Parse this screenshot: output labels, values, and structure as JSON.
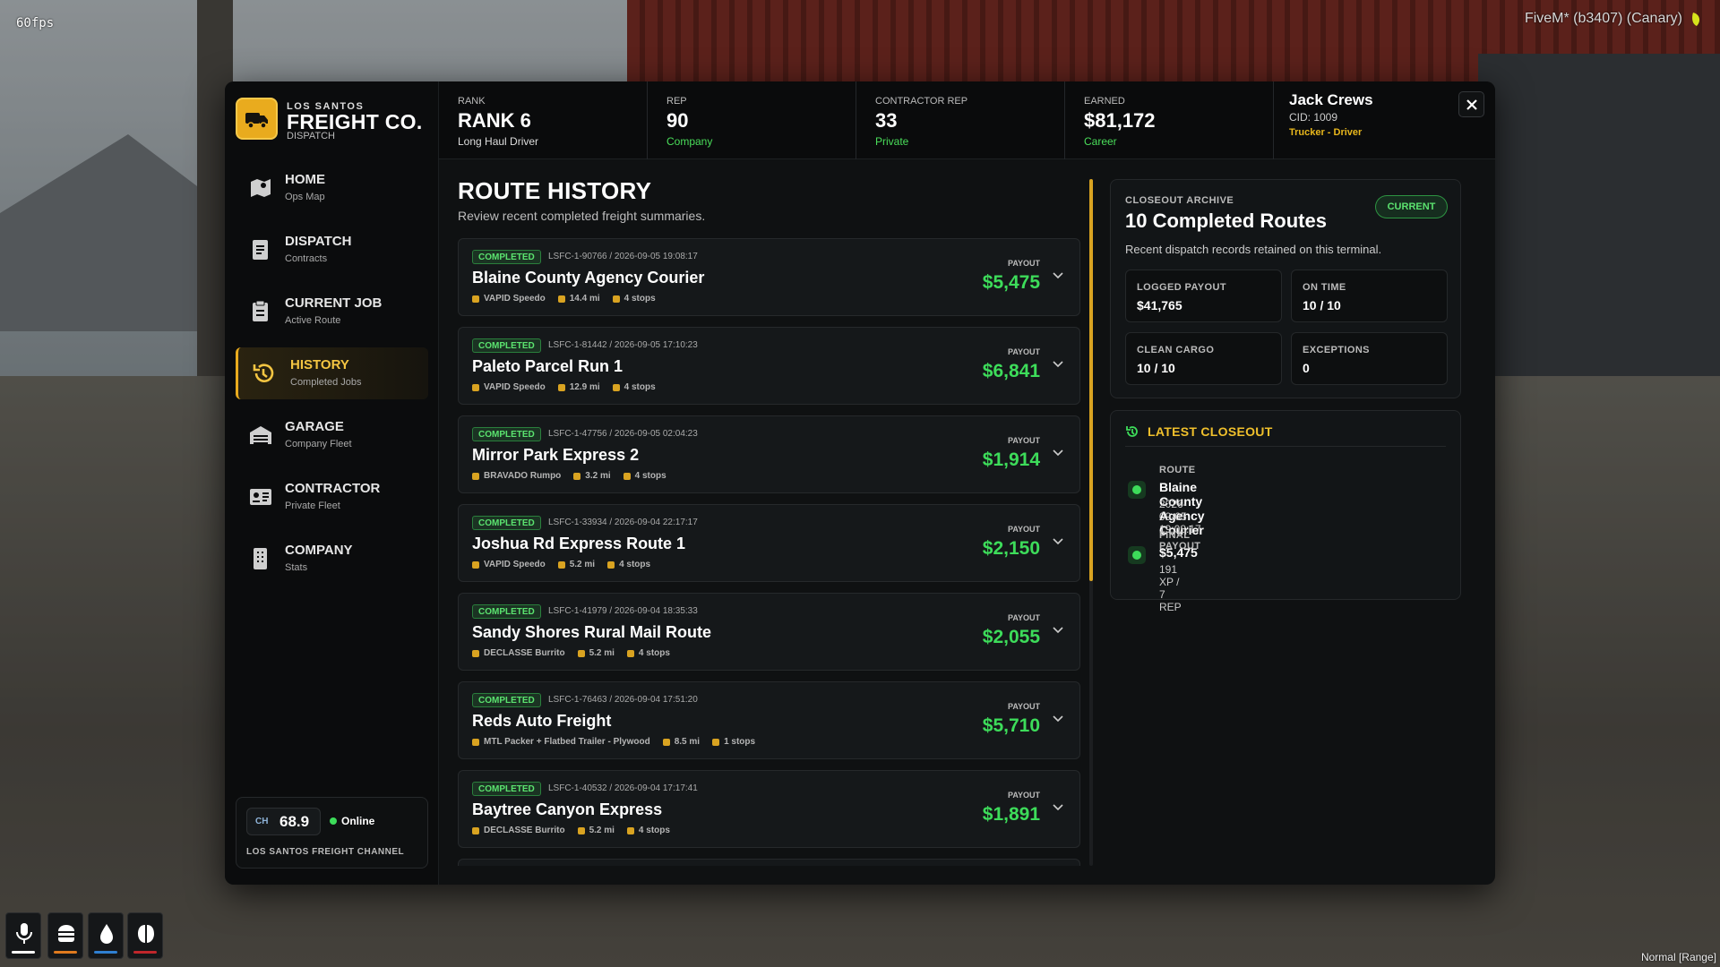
{
  "overlay": {
    "fps": "60fps",
    "client": "FiveM* (b3407) (Canary)",
    "voice_mode": "Normal [Range]"
  },
  "brand": {
    "line1": "LOS SANTOS",
    "name": "FREIGHT CO.",
    "sub": "DISPATCH"
  },
  "nav": [
    {
      "label": "HOME",
      "sub": "Ops Map"
    },
    {
      "label": "DISPATCH",
      "sub": "Contracts"
    },
    {
      "label": "CURRENT JOB",
      "sub": "Active Route"
    },
    {
      "label": "HISTORY",
      "sub": "Completed Jobs",
      "active": true
    },
    {
      "label": "GARAGE",
      "sub": "Company Fleet"
    },
    {
      "label": "CONTRACTOR",
      "sub": "Private Fleet"
    },
    {
      "label": "COMPANY",
      "sub": "Stats"
    }
  ],
  "channel": {
    "ch_label": "CH",
    "frequency": "68.9",
    "status": "Online",
    "name": "LOS SANTOS FREIGHT CHANNEL"
  },
  "stats": [
    {
      "label": "RANK",
      "value": "RANK 6",
      "sub": "Long Haul Driver"
    },
    {
      "label": "REP",
      "value": "90",
      "sub": "Company"
    },
    {
      "label": "CONTRACTOR REP",
      "value": "33",
      "sub": "Private"
    },
    {
      "label": "EARNED",
      "value": "$81,172",
      "sub": "Career"
    }
  ],
  "user": {
    "name": "Jack Crews",
    "cid": "CID: 1009",
    "role": "Trucker - Driver"
  },
  "history": {
    "title": "ROUTE HISTORY",
    "subtitle": "Review recent completed freight summaries.",
    "payout_label": "PAYOUT",
    "routes": [
      {
        "status": "COMPLETED",
        "ref": "LSFC-1-90766 / 2026-09-05 19:08:17",
        "name": "Blaine County Agency Courier",
        "vehicle": "VAPID Speedo",
        "distance": "14.4 mi",
        "stops": "4 stops",
        "payout": "$5,475"
      },
      {
        "status": "COMPLETED",
        "ref": "LSFC-1-81442 / 2026-09-05 17:10:23",
        "name": "Paleto Parcel Run 1",
        "vehicle": "VAPID Speedo",
        "distance": "12.9 mi",
        "stops": "4 stops",
        "payout": "$6,841"
      },
      {
        "status": "COMPLETED",
        "ref": "LSFC-1-47756 / 2026-09-05 02:04:23",
        "name": "Mirror Park Express 2",
        "vehicle": "BRAVADO Rumpo",
        "distance": "3.2 mi",
        "stops": "4 stops",
        "payout": "$1,914"
      },
      {
        "status": "COMPLETED",
        "ref": "LSFC-1-33934 / 2026-09-04 22:17:17",
        "name": "Joshua Rd Express Route 1",
        "vehicle": "VAPID Speedo",
        "distance": "5.2 mi",
        "stops": "4 stops",
        "payout": "$2,150"
      },
      {
        "status": "COMPLETED",
        "ref": "LSFC-1-41979 / 2026-09-04 18:35:33",
        "name": "Sandy Shores Rural Mail Route",
        "vehicle": "DECLASSE Burrito",
        "distance": "5.2 mi",
        "stops": "4 stops",
        "payout": "$2,055"
      },
      {
        "status": "COMPLETED",
        "ref": "LSFC-1-76463 / 2026-09-04 17:51:20",
        "name": "Reds Auto Freight",
        "vehicle": "MTL Packer + Flatbed Trailer - Plywood",
        "distance": "8.5 mi",
        "stops": "1 stops",
        "payout": "$5,710"
      },
      {
        "status": "COMPLETED",
        "ref": "LSFC-1-40532 / 2026-09-04 17:17:41",
        "name": "Baytree Canyon Express",
        "vehicle": "DECLASSE Burrito",
        "distance": "5.2 mi",
        "stops": "4 stops",
        "payout": "$1,891"
      }
    ]
  },
  "archive": {
    "eyebrow": "CLOSEOUT ARCHIVE",
    "title": "10 Completed Routes",
    "badge": "CURRENT",
    "description": "Recent dispatch records retained on this terminal.",
    "tiles": [
      {
        "label": "LOGGED PAYOUT",
        "value": "$41,765"
      },
      {
        "label": "ON TIME",
        "value": "10 / 10"
      },
      {
        "label": "CLEAN CARGO",
        "value": "10 / 10"
      },
      {
        "label": "EXCEPTIONS",
        "value": "0"
      }
    ]
  },
  "latest": {
    "title": "LATEST CLOSEOUT",
    "items": [
      {
        "label": "ROUTE",
        "value": "Blaine County Agency Courier",
        "detail": "2026-09-05 19:08:17"
      },
      {
        "label": "FINAL PAYOUT",
        "value": "$5,475",
        "detail": "191 XP / 7 REP"
      }
    ]
  }
}
